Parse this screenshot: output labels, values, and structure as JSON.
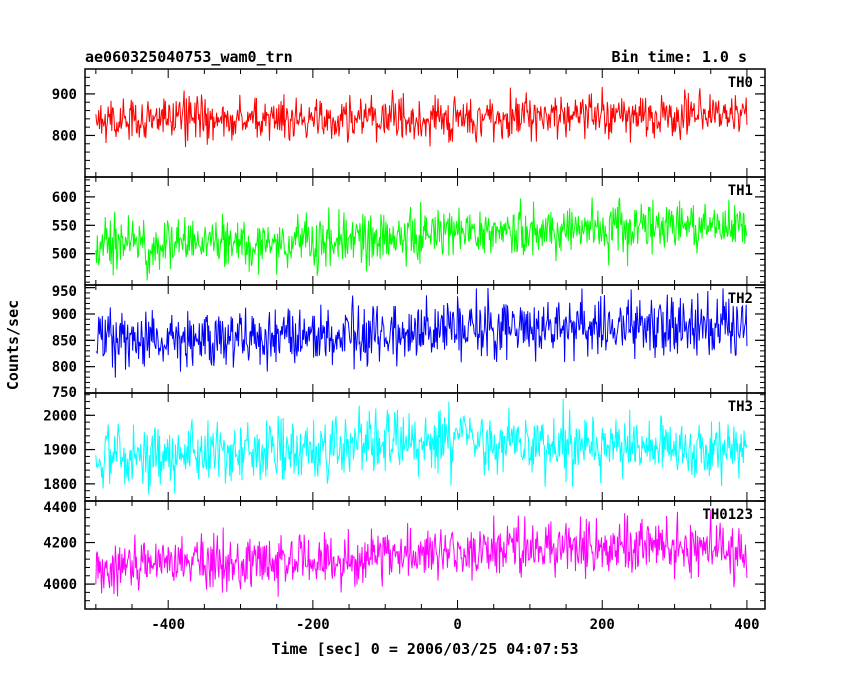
{
  "header": {
    "left_title": "ae060325040753_wam0_trn",
    "right_title": "Bin time: 1.0 s"
  },
  "axes": {
    "xlabel": "Time [sec] 0 = 2006/03/25 04:07:53",
    "ylabel": "Counts/sec"
  },
  "chart_data": {
    "type": "line",
    "title": "ae060325040753_wam0_trn",
    "subtitle": "Bin time: 1.0 s",
    "xlabel": "Time [sec] 0 = 2006/03/25 04:07:53",
    "ylabel": "Counts/sec",
    "xlim": [
      -515,
      425
    ],
    "xticks": [
      -400,
      -200,
      0,
      200,
      400
    ],
    "x_range": [
      -500,
      400
    ],
    "bin_time": 1.0,
    "grid": false,
    "legend": "none",
    "series": [
      {
        "name": "TH0",
        "color": "#ff0000",
        "ylim": [
          700,
          960
        ],
        "yticks": [
          800,
          900
        ],
        "mean": [
          [
            -500,
            840
          ],
          [
            400,
            848
          ]
        ],
        "noise_halfwidth": 55
      },
      {
        "name": "TH1",
        "color": "#00ff00",
        "ylim": [
          445,
          635
        ],
        "yticks": [
          500,
          550,
          600
        ],
        "mean": [
          [
            -500,
            520
          ],
          [
            -300,
            515
          ],
          [
            -100,
            525
          ],
          [
            0,
            540
          ],
          [
            200,
            545
          ],
          [
            400,
            550
          ]
        ],
        "noise_halfwidth": 48
      },
      {
        "name": "TH2",
        "color": "#0000ff",
        "ylim": [
          750,
          955
        ],
        "yticks": [
          750,
          800,
          850,
          900,
          950
        ],
        "mean": [
          [
            -500,
            850
          ],
          [
            -200,
            855
          ],
          [
            0,
            868
          ],
          [
            200,
            880
          ],
          [
            400,
            872
          ]
        ],
        "noise_halfwidth": 60
      },
      {
        "name": "TH3",
        "color": "#00ffff",
        "ylim": [
          1750,
          2065
        ],
        "yticks": [
          1800,
          1900,
          2000
        ],
        "mean": [
          [
            -500,
            1880
          ],
          [
            -200,
            1900
          ],
          [
            0,
            1925
          ],
          [
            200,
            1915
          ],
          [
            400,
            1890
          ]
        ],
        "noise_halfwidth": 95
      },
      {
        "name": "TH0123",
        "color": "#ff00ff",
        "ylim": [
          3880,
          4400
        ],
        "yticks": [
          4000,
          4200,
          4400
        ],
        "mean": [
          [
            -500,
            4090
          ],
          [
            -200,
            4110
          ],
          [
            0,
            4160
          ],
          [
            200,
            4180
          ],
          [
            400,
            4160
          ]
        ],
        "noise_halfwidth": 140
      }
    ]
  }
}
